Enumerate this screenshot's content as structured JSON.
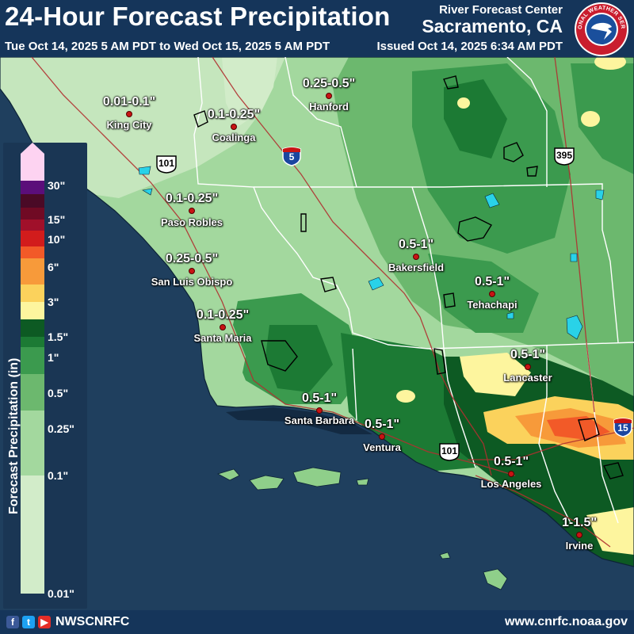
{
  "header": {
    "title": "24-Hour Forecast Precipitation",
    "valid_period": "Tue Oct 14, 2025 5 AM PDT to Wed Oct 15, 2025 5 AM PDT",
    "center_name": "River Forecast Center",
    "center_city": "Sacramento, CA",
    "issued": "Issued Oct 14, 2025 6:34 AM PDT",
    "logo_text": "NATIONAL WEATHER SERVICE"
  },
  "legend": {
    "title": "Forecast Precipitation (in)",
    "ticks": [
      "30\"",
      "15\"",
      "10\"",
      "6\"",
      "3\"",
      "1.5\"",
      "1\"",
      "0.5\"",
      "0.25\"",
      "0.1\"",
      "0.01\""
    ],
    "colors": [
      "#fdd3f1",
      "#5b0e7a",
      "#4a0a26",
      "#700a24",
      "#a0102a",
      "#d21c1c",
      "#f25a28",
      "#f79a3a",
      "#fbd25c",
      "#fdf59e",
      "#0d5a23",
      "#1c7a34",
      "#3b9a4e",
      "#6cb86e",
      "#a3d89e",
      "#d2ecc9"
    ]
  },
  "cities": [
    {
      "name": "King City",
      "amount": "0.01-0.1\""
    },
    {
      "name": "Coalinga",
      "amount": "0.1-0.25\""
    },
    {
      "name": "Hanford",
      "amount": "0.25-0.5\""
    },
    {
      "name": "Paso Robles",
      "amount": "0.1-0.25\""
    },
    {
      "name": "San Luis Obispo",
      "amount": "0.25-0.5\""
    },
    {
      "name": "Santa Maria",
      "amount": "0.1-0.25\""
    },
    {
      "name": "Bakersfield",
      "amount": "0.5-1\""
    },
    {
      "name": "Tehachapi",
      "amount": "0.5-1\""
    },
    {
      "name": "Lancaster",
      "amount": "0.5-1\""
    },
    {
      "name": "Santa Barbara",
      "amount": "0.5-1\""
    },
    {
      "name": "Ventura",
      "amount": "0.5-1\""
    },
    {
      "name": "Los Angeles",
      "amount": "0.5-1\""
    },
    {
      "name": "Irvine",
      "amount": "1-1.5\""
    }
  ],
  "highways": [
    {
      "type": "us",
      "number": "101"
    },
    {
      "type": "interstate",
      "number": "5"
    },
    {
      "type": "us",
      "number": "395"
    },
    {
      "type": "us",
      "number": "101"
    },
    {
      "type": "interstate",
      "number": "15"
    }
  ],
  "footer": {
    "social_handle": "NWSCNRFC",
    "website": "www.cnrfc.noaa.gov"
  }
}
